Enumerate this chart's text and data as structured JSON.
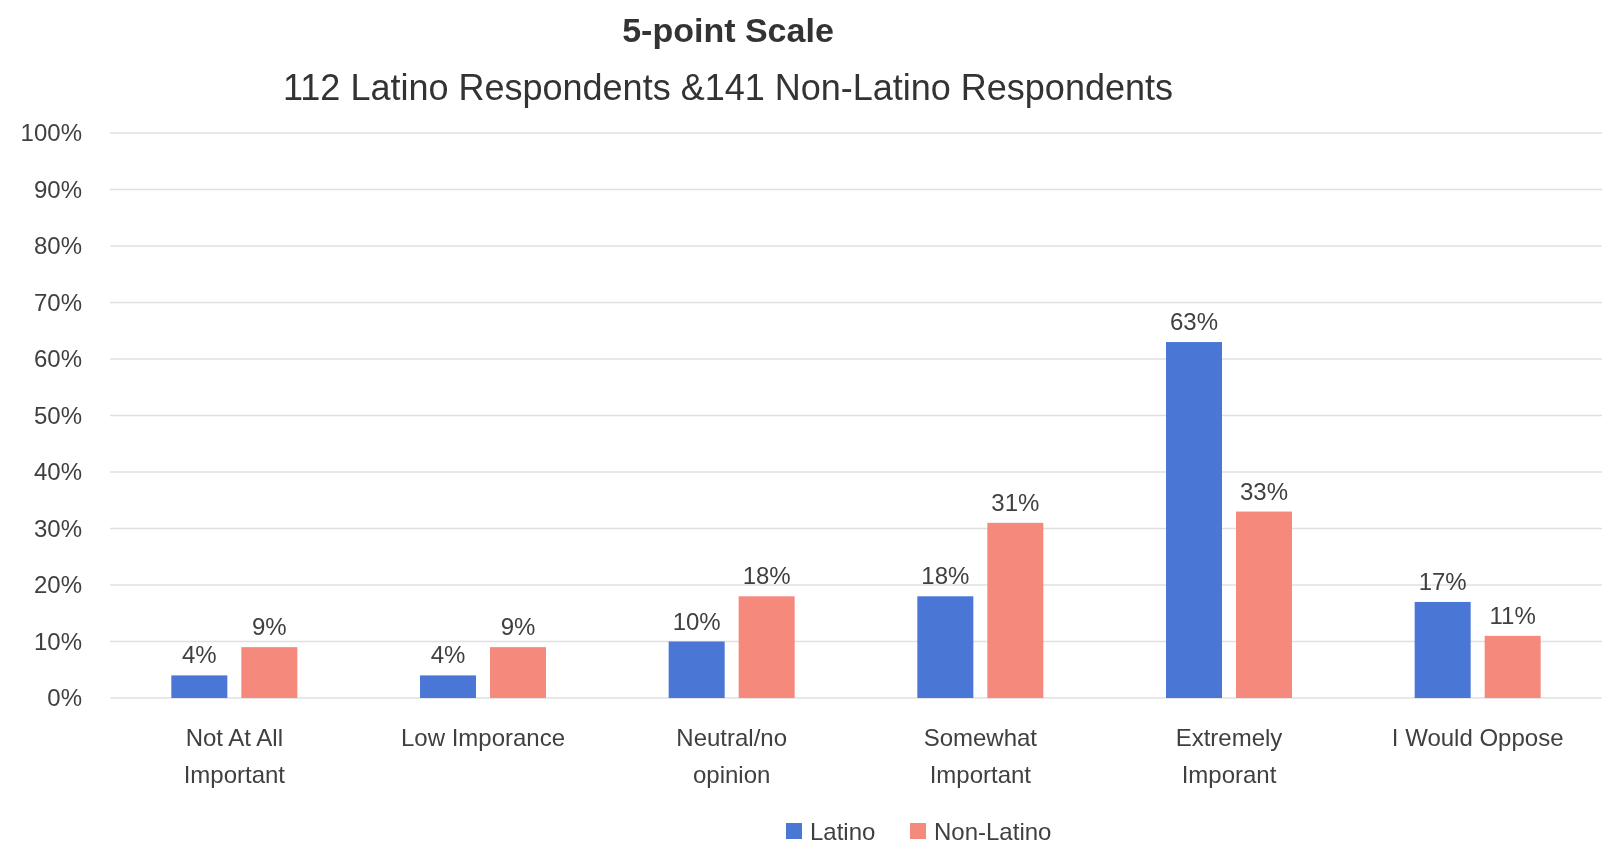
{
  "chart_data": {
    "type": "bar",
    "title": "5-point Scale",
    "subtitle": "112 Latino Respondents &141 Non-Latino Respondents",
    "categories": [
      "Not At All Important",
      "Low Imporance",
      "Neutral/no opinion",
      "Somewhat Important",
      "Extremely Imporant",
      "I Would Oppose"
    ],
    "series": [
      {
        "name": "Latino",
        "color": "#4a77d6",
        "values": [
          4,
          4,
          10,
          18,
          63,
          17
        ]
      },
      {
        "name": "Non-Latino",
        "color": "#f4897c",
        "values": [
          9,
          9,
          18,
          31,
          33,
          11
        ]
      }
    ],
    "ylim": [
      0,
      100
    ],
    "yticks": [
      {
        "value": 0,
        "label": "0%"
      },
      {
        "value": 10,
        "label": "10%"
      },
      {
        "value": 20,
        "label": "20%"
      },
      {
        "value": 30,
        "label": "30%"
      },
      {
        "value": 40,
        "label": "40%"
      },
      {
        "value": 50,
        "label": "50%"
      },
      {
        "value": 60,
        "label": "60%"
      },
      {
        "value": 70,
        "label": "70%"
      },
      {
        "value": 80,
        "label": "80%"
      },
      {
        "value": 90,
        "label": "90%"
      },
      {
        "value": 100,
        "label": "100%"
      }
    ],
    "value_labels": [
      [
        "4%",
        "4%",
        "10%",
        "18%",
        "63%",
        "17%"
      ],
      [
        "9%",
        "9%",
        "18%",
        "31%",
        "33%",
        "11%"
      ]
    ],
    "grid": "y",
    "legend": "bottom"
  }
}
